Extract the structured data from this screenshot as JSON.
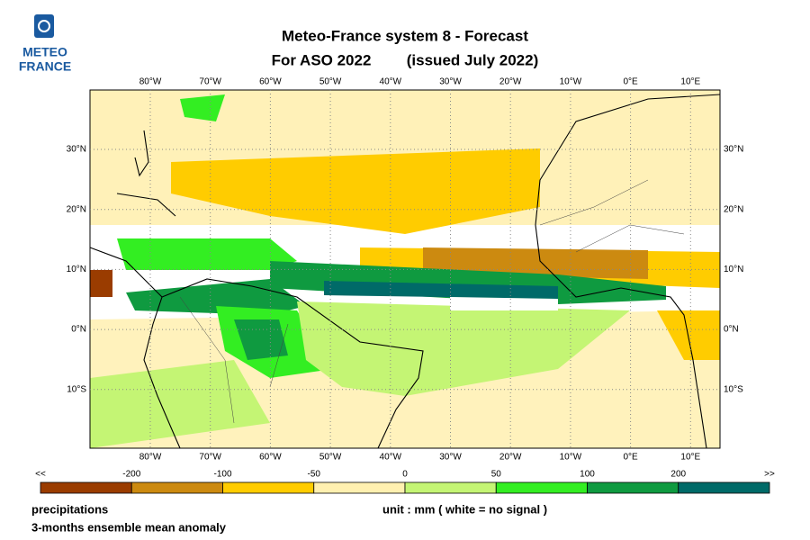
{
  "logo": {
    "line1": "METEO",
    "line2": "FRANCE"
  },
  "title": {
    "line1": "Meteo-France system 8  -  Forecast",
    "line2": "For ASO 2022",
    "line3": "(issued July 2022)"
  },
  "map": {
    "lon_labels": [
      "80°W",
      "70°W",
      "60°W",
      "50°W",
      "40°W",
      "30°W",
      "20°W",
      "10°W",
      "0°E",
      "10°E"
    ],
    "lat_labels": [
      "30°N",
      "20°N",
      "10°N",
      "0°N",
      "10°S"
    ]
  },
  "colorbar": {
    "labels": [
      "<<",
      "-200",
      "-100",
      "-50",
      "0",
      "50",
      "100",
      "200",
      ">>"
    ],
    "colors": [
      "#9a3c00",
      "#cc8a10",
      "#ffcc00",
      "#fff0b0",
      "#c4f574",
      "#33ee22",
      "#0f9a40",
      "#006a68"
    ]
  },
  "footer": {
    "variable": "precipitations",
    "unit": "unit : mm  ( white = no signal )",
    "description": "3-months ensemble mean anomaly"
  }
}
